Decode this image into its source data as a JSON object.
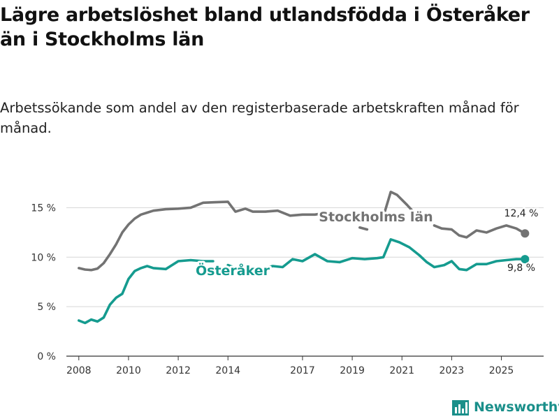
{
  "title": "Lägre arbetslöshet bland utlandsfödda i Österåker än i Stockholms län",
  "subtitle": "Arbetssökande som andel av den registerbaserade arbetskraften månad för månad.",
  "brand": "Newsworthy",
  "colors": {
    "stockholm": "#737373",
    "osteraker": "#159b8f",
    "grid": "#d6d6d6",
    "brand": "#1a8f8a"
  },
  "chart_data": {
    "type": "line",
    "ylim": [
      0,
      17.5
    ],
    "yticks": [
      0,
      5,
      10,
      15
    ],
    "ytick_labels": [
      "0 %",
      "5 %",
      "10 %",
      "15 %"
    ],
    "xlim": [
      2007.5,
      2026.7
    ],
    "xticks": [
      2008,
      2010,
      2012,
      2014,
      2017,
      2019,
      2021,
      2023,
      2025
    ],
    "xtick_labels": [
      "2008",
      "2010",
      "2012",
      "2014",
      "2017",
      "2019",
      "2021",
      "2023",
      "2025"
    ],
    "series": [
      {
        "name": "Stockholms län",
        "label": "Stockholms län",
        "end_label": "12,4 %",
        "end_value": 12.4,
        "end_x": 2025.95,
        "segments": [
          [
            [
              2008.0,
              8.9
            ],
            [
              2008.25,
              8.75
            ],
            [
              2008.5,
              8.7
            ],
            [
              2008.75,
              8.85
            ],
            [
              2009.0,
              9.4
            ],
            [
              2009.25,
              10.3
            ],
            [
              2009.5,
              11.3
            ],
            [
              2009.75,
              12.5
            ],
            [
              2010.0,
              13.3
            ],
            [
              2010.25,
              13.9
            ],
            [
              2010.5,
              14.3
            ],
            [
              2010.75,
              14.5
            ],
            [
              2011.0,
              14.7
            ],
            [
              2011.5,
              14.85
            ],
            [
              2012.0,
              14.9
            ],
            [
              2012.5,
              15.0
            ],
            [
              2013.0,
              15.5
            ],
            [
              2013.5,
              15.55
            ],
            [
              2014.0,
              15.6
            ],
            [
              2014.3,
              14.6
            ],
            [
              2014.7,
              14.9
            ],
            [
              2015.0,
              14.6
            ],
            [
              2015.5,
              14.6
            ],
            [
              2016.0,
              14.7
            ],
            [
              2016.5,
              14.2
            ],
            [
              2017.0,
              14.3
            ],
            [
              2017.5,
              14.3
            ],
            [
              2018.0,
              14.5
            ]
          ],
          [
            [
              2019.3,
              13.0
            ],
            [
              2019.6,
              12.8
            ]
          ],
          [
            [
              2020.3,
              14.5
            ],
            [
              2020.55,
              16.6
            ],
            [
              2020.8,
              16.3
            ],
            [
              2021.2,
              15.3
            ],
            [
              2021.6,
              14.2
            ],
            [
              2021.8,
              13.6
            ]
          ],
          [
            [
              2022.3,
              13.2
            ],
            [
              2022.6,
              12.9
            ],
            [
              2023.0,
              12.8
            ],
            [
              2023.3,
              12.2
            ],
            [
              2023.6,
              12.0
            ],
            [
              2024.0,
              12.7
            ],
            [
              2024.4,
              12.5
            ],
            [
              2024.8,
              12.9
            ],
            [
              2025.2,
              13.2
            ],
            [
              2025.6,
              12.9
            ],
            [
              2025.95,
              12.4
            ]
          ]
        ]
      },
      {
        "name": "Österåker",
        "label": "Österåker",
        "end_label": "9,8 %",
        "end_value": 9.8,
        "end_x": 2025.95,
        "segments": [
          [
            [
              2008.0,
              3.6
            ],
            [
              2008.25,
              3.35
            ],
            [
              2008.5,
              3.7
            ],
            [
              2008.75,
              3.5
            ],
            [
              2009.0,
              3.9
            ],
            [
              2009.25,
              5.2
            ],
            [
              2009.5,
              5.9
            ],
            [
              2009.75,
              6.3
            ],
            [
              2010.0,
              7.8
            ],
            [
              2010.25,
              8.6
            ],
            [
              2010.5,
              8.9
            ],
            [
              2010.75,
              9.1
            ],
            [
              2011.0,
              8.9
            ],
            [
              2011.5,
              8.8
            ],
            [
              2012.0,
              9.6
            ],
            [
              2012.5,
              9.7
            ],
            [
              2013.0,
              9.6
            ],
            [
              2013.4,
              9.6
            ]
          ],
          [
            [
              2014.0,
              9.2
            ],
            [
              2014.4,
              8.8
            ]
          ],
          [
            [
              2014.8,
              8.6
            ],
            [
              2015.3,
              8.8
            ],
            [
              2015.8,
              9.1
            ],
            [
              2016.2,
              9.0
            ],
            [
              2016.6,
              9.8
            ],
            [
              2017.0,
              9.6
            ],
            [
              2017.5,
              10.3
            ],
            [
              2018.0,
              9.6
            ],
            [
              2018.5,
              9.5
            ],
            [
              2019.0,
              9.9
            ],
            [
              2019.5,
              9.8
            ],
            [
              2020.0,
              9.9
            ],
            [
              2020.25,
              10.0
            ],
            [
              2020.55,
              11.8
            ],
            [
              2020.9,
              11.5
            ],
            [
              2021.3,
              11.0
            ],
            [
              2021.7,
              10.2
            ],
            [
              2022.0,
              9.5
            ],
            [
              2022.3,
              9.0
            ],
            [
              2022.7,
              9.2
            ],
            [
              2023.0,
              9.6
            ],
            [
              2023.3,
              8.8
            ],
            [
              2023.6,
              8.7
            ],
            [
              2024.0,
              9.3
            ],
            [
              2024.4,
              9.3
            ],
            [
              2024.8,
              9.6
            ],
            [
              2025.2,
              9.7
            ],
            [
              2025.6,
              9.8
            ],
            [
              2025.95,
              9.8
            ]
          ]
        ]
      }
    ]
  }
}
